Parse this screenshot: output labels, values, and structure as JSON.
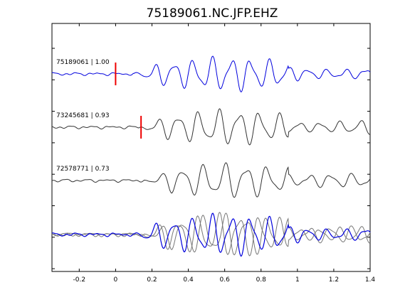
{
  "chart_data": {
    "type": "line",
    "title": "75189061.NC.JFP.EHZ",
    "xlabel": "",
    "ylabel": "",
    "xlim": [
      -0.35,
      1.4
    ],
    "x_ticks": [
      -0.2,
      0,
      0.2,
      0.4,
      0.6,
      0.8,
      1,
      1.2,
      1.4
    ],
    "x_tick_labels": [
      "-0.2",
      "0",
      "0.2",
      "0.4",
      "0.6",
      "0.8",
      "1",
      "1.2",
      "1.4"
    ],
    "y_tick_count": 8,
    "grid": false,
    "colors": {
      "reference": "#0000dd",
      "other": "#333333",
      "overlay": "#777777",
      "pick": "#ee0000"
    },
    "traces": [
      {
        "label": "75189061 | 1.00",
        "event_id": "75189061",
        "correlation": 1.0,
        "pick_time": 0.0,
        "onset": 0.1,
        "color": "reference"
      },
      {
        "label": "73245681 | 0.93",
        "event_id": "73245681",
        "correlation": 0.93,
        "pick_time": 0.14,
        "onset": 0.13,
        "color": "other"
      },
      {
        "label": "72578771 | 0.73",
        "event_id": "72578771",
        "correlation": 0.73,
        "pick_time": null,
        "onset": 0.16,
        "color": "other"
      }
    ]
  }
}
